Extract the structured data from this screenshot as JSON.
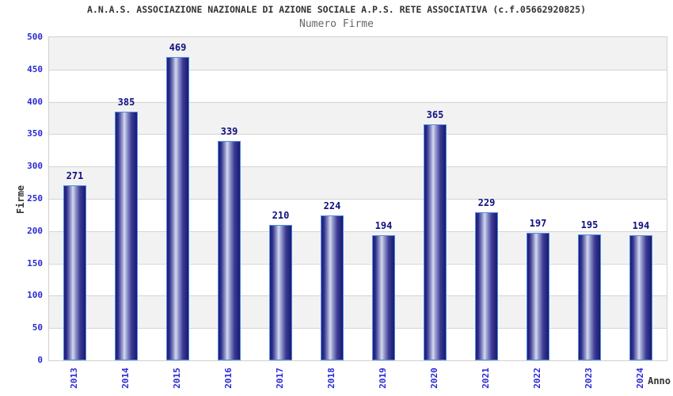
{
  "chart_data": {
    "type": "bar",
    "title": "A.N.A.S. ASSOCIAZIONE NAZIONALE DI AZIONE SOCIALE A.P.S. RETE ASSOCIATIVA (c.f.05662920825)",
    "subtitle": "Numero Firme",
    "xlabel": "Anno",
    "ylabel": "Firme",
    "categories": [
      "2013",
      "2014",
      "2015",
      "2016",
      "2017",
      "2018",
      "2019",
      "2020",
      "2021",
      "2022",
      "2023",
      "2024"
    ],
    "values": [
      271,
      385,
      469,
      339,
      210,
      224,
      194,
      365,
      229,
      197,
      195,
      194
    ],
    "ylim": [
      0,
      500
    ],
    "ytick_step": 50,
    "yticks": [
      0,
      50,
      100,
      150,
      200,
      250,
      300,
      350,
      400,
      450,
      500
    ],
    "grid": true,
    "legend": "none",
    "band_colors": [
      "#f2f2f2",
      "#ffffff"
    ],
    "colors": {
      "bar_dark": "#1c1c78",
      "bar_light": "#d5d9f1",
      "bar_border": "#4d8fe0",
      "tick_label": "#2a2ad4",
      "value_label": "#101080",
      "title": "#333333",
      "subtitle": "#666666",
      "gridline": "#d4d4d4"
    }
  }
}
